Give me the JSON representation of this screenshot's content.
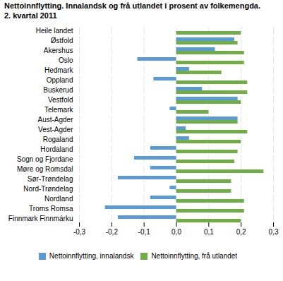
{
  "chart_data": {
    "type": "bar",
    "orientation": "horizontal",
    "title": "Nettoinnflytting. Innalandsk og frå utlandet i prosent av folkemengda.",
    "subtitle": "2. kvartal 2011",
    "categories": [
      "Heile landet",
      "Østfold",
      "Akershus",
      "Oslo",
      "Hedmark",
      "Oppland",
      "Buskerud",
      "Vestfold",
      "Telemark",
      "Aust-Agder",
      "Vest-Agder",
      "Rogaland",
      "Hordaland",
      "Sogn og Fjordane",
      "Møre og Romsdal",
      "Sør-Trøndelag",
      "Nord-Trøndelag",
      "Nordland",
      "Troms Romsa",
      "Finnmark Finnmárku"
    ],
    "series": [
      {
        "name": "Nettoinnflytting, innalandsk",
        "color": "#5B9BD5",
        "values": [
          0.0,
          0.18,
          0.12,
          -0.12,
          0.04,
          -0.07,
          0.08,
          0.19,
          -0.02,
          0.19,
          0.03,
          0.04,
          -0.08,
          -0.13,
          -0.08,
          -0.18,
          -0.02,
          -0.08,
          -0.22,
          -0.18
        ]
      },
      {
        "name": "Nettoinnflytting, frå utlandet",
        "color": "#70AD47",
        "values": [
          0.2,
          0.19,
          0.21,
          0.21,
          0.14,
          0.22,
          0.22,
          0.2,
          0.1,
          0.19,
          0.22,
          0.2,
          0.19,
          0.18,
          0.27,
          0.17,
          0.17,
          0.21,
          0.21,
          0.2
        ]
      }
    ],
    "xlim": [
      -0.3,
      0.3
    ],
    "xticks": [
      {
        "value": -0.3,
        "label": "-0,3"
      },
      {
        "value": -0.2,
        "label": "-0,2"
      },
      {
        "value": -0.1,
        "label": "-0,1"
      },
      {
        "value": 0.0,
        "label": "0,0"
      },
      {
        "value": 0.1,
        "label": "0,1"
      },
      {
        "value": 0.2,
        "label": "0,2"
      },
      {
        "value": 0.3,
        "label": "0,3"
      }
    ],
    "grid": true,
    "legend": "bottom"
  }
}
